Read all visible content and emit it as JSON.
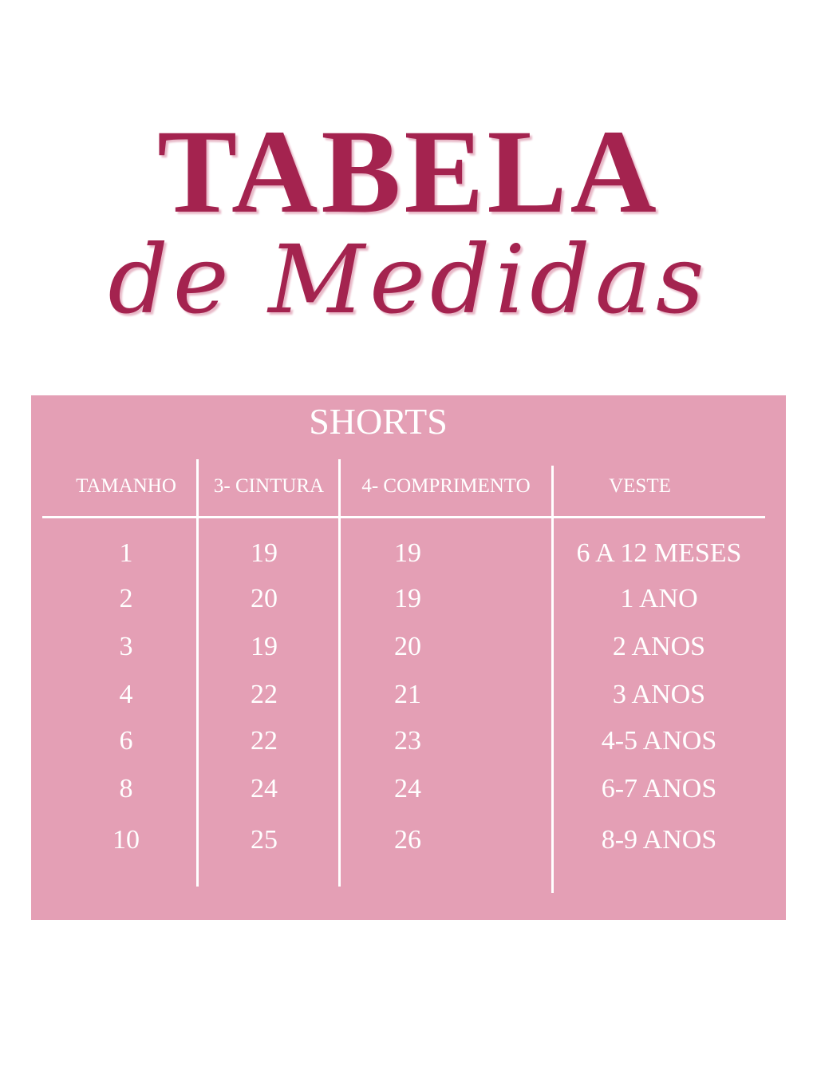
{
  "title": {
    "line1": "TABELA",
    "line2": "de Medidas"
  },
  "table": {
    "caption": "SHORTS",
    "columns": [
      "TAMANHO",
      "3-  CINTURA",
      "4- COMPRIMENTO",
      "VESTE"
    ],
    "rows": [
      [
        "1",
        "19",
        "19",
        "6 A 12 MESES"
      ],
      [
        "2",
        "20",
        "19",
        "1 ANO"
      ],
      [
        "3",
        "19",
        "20",
        "2 ANOS"
      ],
      [
        "4",
        "22",
        "21",
        "3 ANOS"
      ],
      [
        "6",
        "22",
        "23",
        "4-5 ANOS"
      ],
      [
        "8",
        "24",
        "24",
        "6-7 ANOS"
      ],
      [
        "10",
        "25",
        "26",
        "8-9 ANOS"
      ]
    ]
  },
  "colors": {
    "title": "#a4234f",
    "panel": "#e49fb5",
    "text": "#ffffff"
  }
}
